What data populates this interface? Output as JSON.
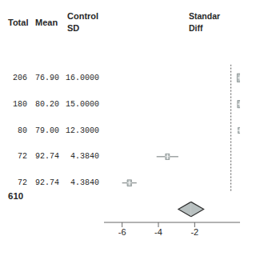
{
  "chart_data": {
    "type": "forest",
    "columns": [
      {
        "header": [
          "Total"
        ],
        "values": [
          "206",
          "180",
          "80",
          "72",
          "72"
        ]
      },
      {
        "header": [
          "Mean"
        ],
        "values": [
          "76.90",
          "80.20",
          "79.00",
          "92.74",
          "92.74"
        ]
      },
      {
        "header": [
          "Control",
          "SD"
        ],
        "values": [
          "16.0000",
          "15.0000",
          "12.3000",
          "4.3840",
          "4.3840"
        ]
      }
    ],
    "effect_header": [
      "Standar",
      "Diff"
    ],
    "values": [
      0.5,
      0.5,
      0.5,
      -3.5,
      -5.6
    ],
    "ci_low": [
      0.5,
      0.5,
      0.5,
      -4.1,
      -6.0
    ],
    "ci_high": [
      0.5,
      0.5,
      0.5,
      -2.9,
      -5.2
    ],
    "sizes": [
      0.32,
      0.28,
      0.22,
      0.22,
      0.24
    ],
    "summary": {
      "label": "610",
      "center": -2.2,
      "low": -2.9,
      "high": -1.5
    },
    "reference_line": 0.0,
    "xlim": [
      -7,
      0.5
    ],
    "xticks": [
      -6,
      -4,
      -2
    ],
    "color": "#b8c0c0"
  }
}
